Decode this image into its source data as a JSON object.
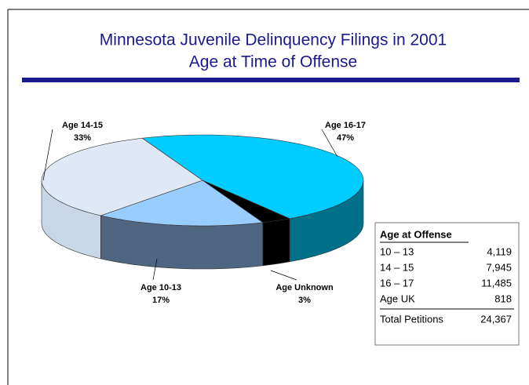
{
  "chart_data": {
    "type": "pie3d",
    "title": [
      "Minnesota Juvenile Delinquency Filings in 2001",
      "Age at Time of Offense"
    ],
    "categories": [
      "Age 16-17",
      "Age Unknown",
      "Age 10-13",
      "Age 14-15"
    ],
    "values": [
      47,
      3,
      17,
      33
    ],
    "value_labels": [
      "47%",
      "3%",
      "17%",
      "33%"
    ],
    "colors": [
      "#00ccff",
      "#000000",
      "#99ccff",
      "#dfe9f5"
    ],
    "side_colors": [
      "#006f88",
      "#000000",
      "#4f6680",
      "#c9d6e6"
    ]
  },
  "table": {
    "title": "Age at Offense",
    "rows": [
      [
        "10 – 13",
        "4,119"
      ],
      [
        "14 – 15",
        "7,945"
      ],
      [
        "16 – 17",
        "11,485"
      ],
      [
        "Age UK",
        "818"
      ]
    ],
    "total": [
      "Total Petitions",
      "24,367"
    ]
  }
}
